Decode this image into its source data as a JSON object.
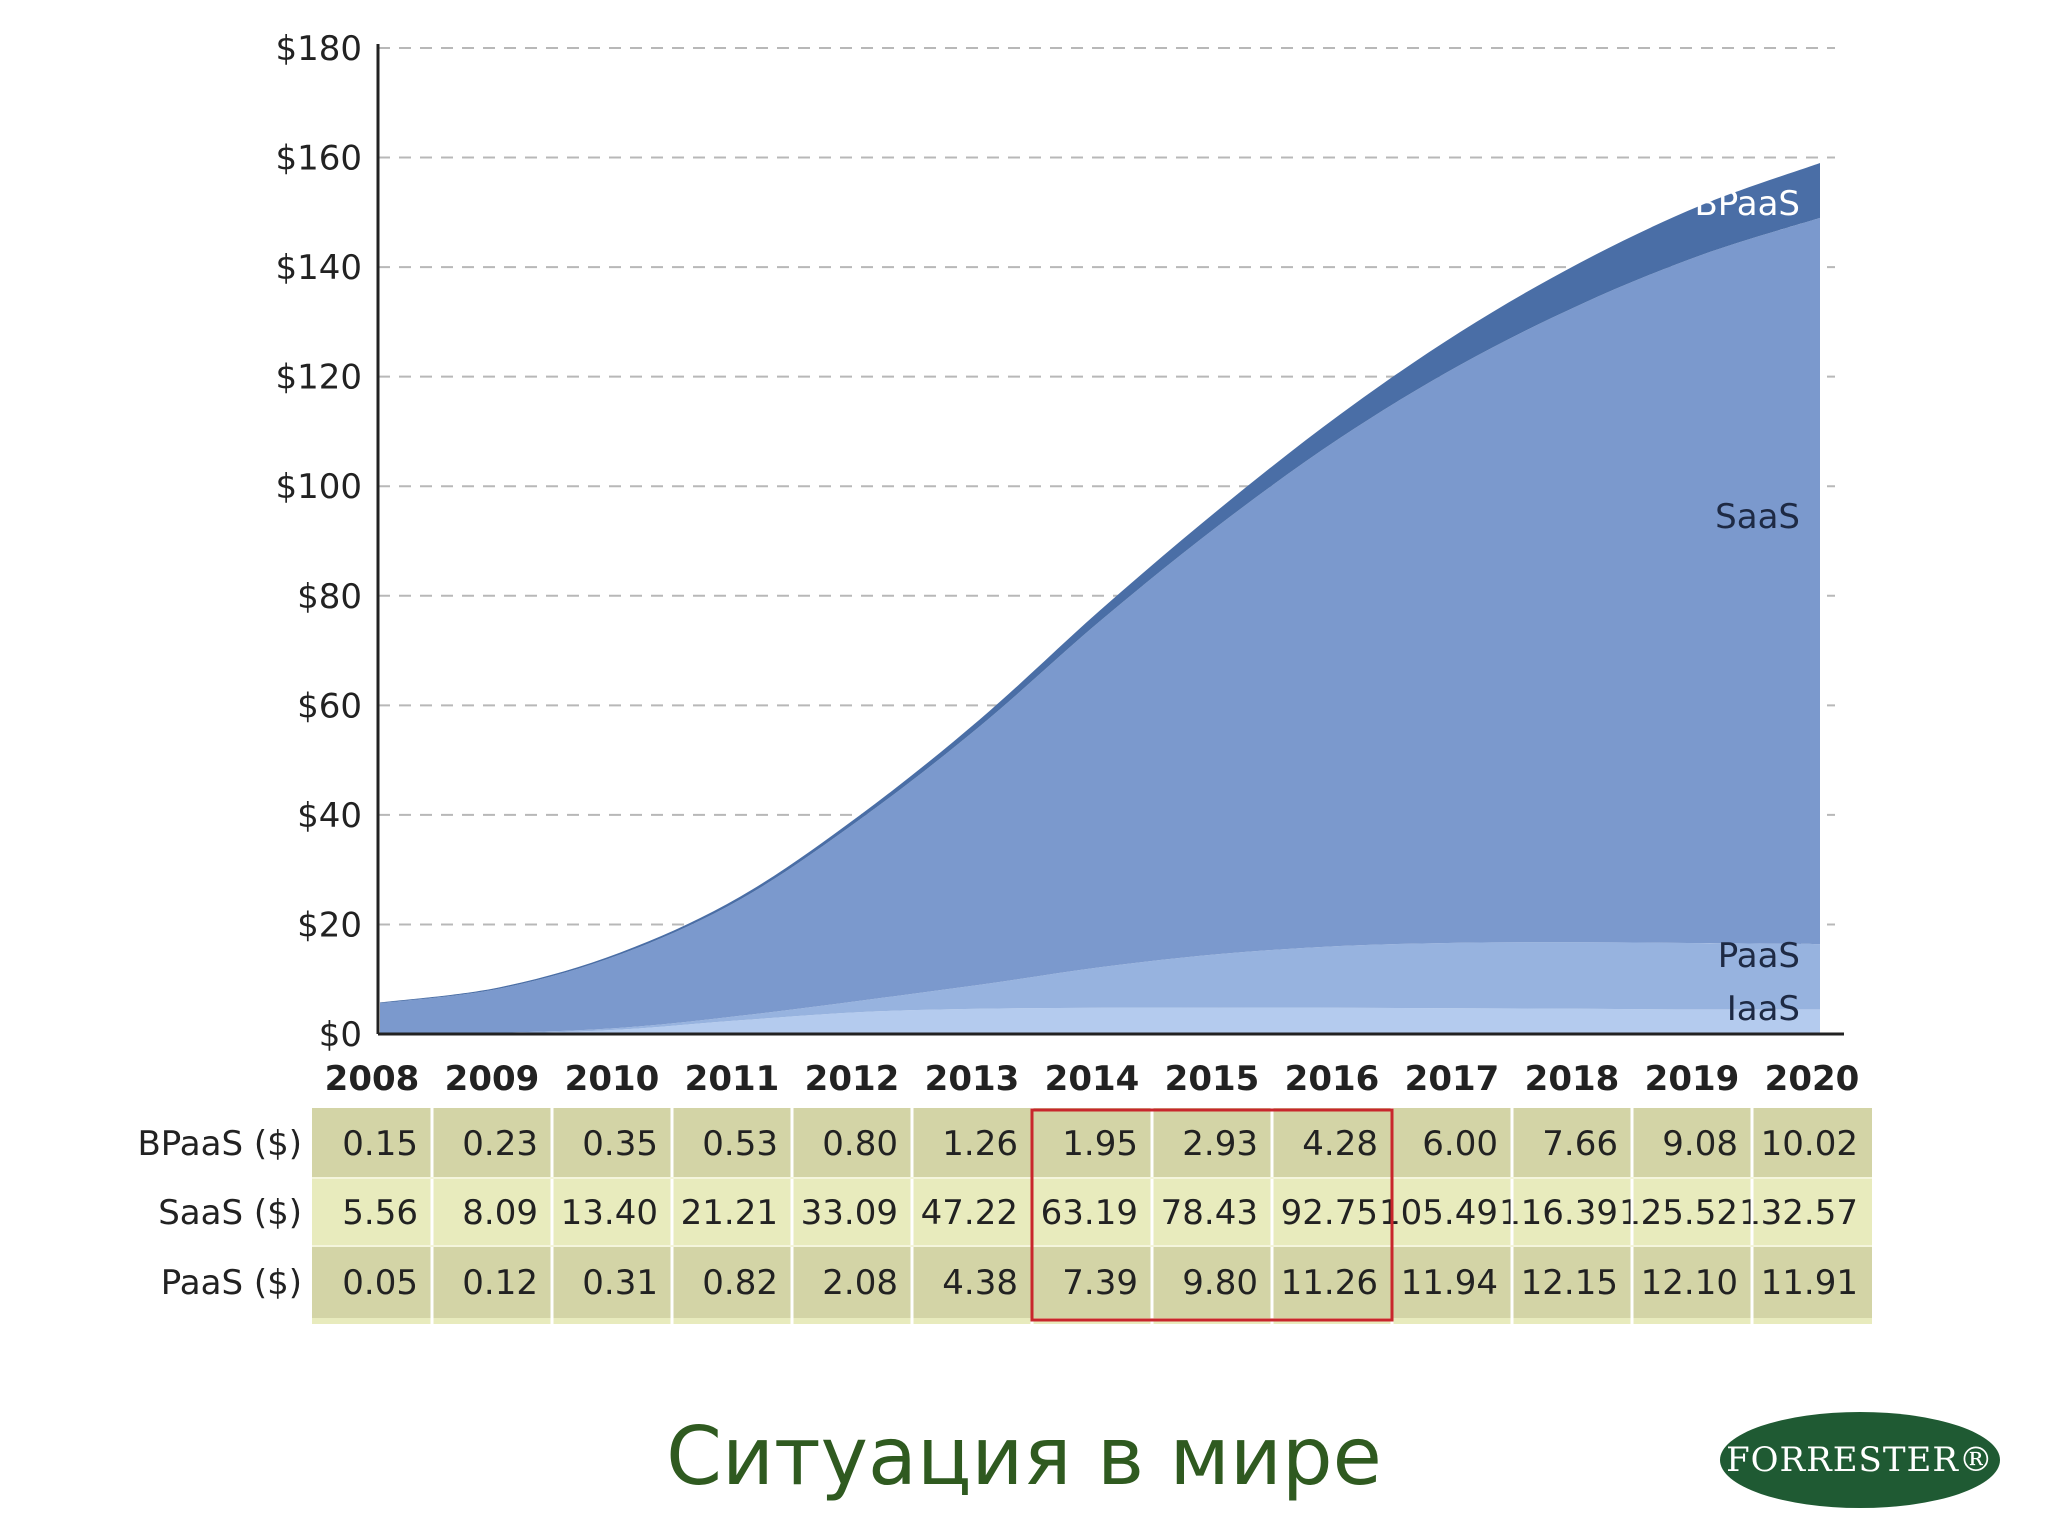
{
  "title": "Ситуация в мире",
  "logo_text": "FORRESTER®",
  "colors": {
    "bpaas": "#4a6ea6",
    "saas": "#7b99cd",
    "paas": "#97b3df",
    "iaas": "#b4cbee",
    "table_light": "#e8ebbd",
    "table_dark": "#d3d4a6",
    "highlight": "#c8262c",
    "title": "#2f5a20",
    "logo": "#1f5a33"
  },
  "chart_data": {
    "type": "area",
    "stacked": true,
    "x": [
      "2008",
      "2009",
      "2010",
      "2011",
      "2012",
      "2013",
      "2014",
      "2015",
      "2016",
      "2017",
      "2018",
      "2019",
      "2020"
    ],
    "y_ticks": [
      "$0",
      "$20",
      "$40",
      "$60",
      "$80",
      "$100",
      "$120",
      "$140",
      "$160",
      "$180"
    ],
    "ylim": [
      0,
      180
    ],
    "grid": true,
    "series": [
      {
        "name": "IaaS",
        "label": "IaaS",
        "values": [
          0.0,
          0.1,
          0.8,
          2.5,
          4.0,
          4.6,
          4.8,
          4.8,
          4.8,
          4.7,
          4.6,
          4.5,
          4.5
        ]
      },
      {
        "name": "PaaS",
        "label": "PaaS",
        "values": [
          0.05,
          0.12,
          0.31,
          0.82,
          2.08,
          4.38,
          7.39,
          9.8,
          11.26,
          11.94,
          12.15,
          12.1,
          11.91
        ]
      },
      {
        "name": "SaaS",
        "label": "SaaS",
        "values": [
          5.56,
          8.09,
          13.4,
          21.21,
          33.09,
          47.22,
          63.19,
          78.43,
          92.75,
          105.49,
          116.39,
          125.52,
          132.57
        ]
      },
      {
        "name": "BPaaS",
        "label": "BPaaS",
        "values": [
          0.15,
          0.23,
          0.35,
          0.53,
          0.8,
          1.26,
          1.95,
          2.93,
          4.28,
          6.0,
          7.66,
          9.08,
          10.02
        ]
      }
    ],
    "table": {
      "rows": [
        {
          "label": "BPaaS ($)",
          "values": [
            "0.15",
            "0.23",
            "0.35",
            "0.53",
            "0.80",
            "1.26",
            "1.95",
            "2.93",
            "4.28",
            "6.00",
            "7.66",
            "9.08",
            "10.02"
          ]
        },
        {
          "label": "SaaS ($)",
          "values": [
            "5.56",
            "8.09",
            "13.40",
            "21.21",
            "33.09",
            "47.22",
            "63.19",
            "78.43",
            "92.75",
            "105.49",
            "116.39",
            "125.52",
            "132.57"
          ]
        },
        {
          "label": "PaaS ($)",
          "values": [
            "0.05",
            "0.12",
            "0.31",
            "0.82",
            "2.08",
            "4.38",
            "7.39",
            "9.80",
            "11.26",
            "11.94",
            "12.15",
            "12.10",
            "11.91"
          ]
        }
      ],
      "highlight_years": [
        "2014",
        "2015",
        "2016"
      ]
    }
  }
}
